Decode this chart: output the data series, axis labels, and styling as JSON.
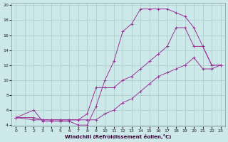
{
  "xlabel": "Windchill (Refroidissement éolien,°C)",
  "bg_color": "#cce8e8",
  "grid_color": "#aacccc",
  "line_color": "#993399",
  "xlim": [
    0,
    23
  ],
  "ylim": [
    4,
    20
  ],
  "xticks": [
    0,
    1,
    2,
    3,
    4,
    5,
    6,
    7,
    8,
    9,
    10,
    11,
    12,
    13,
    14,
    15,
    16,
    17,
    18,
    19,
    20,
    21,
    22,
    23
  ],
  "yticks": [
    4,
    6,
    8,
    10,
    12,
    14,
    16,
    18,
    20
  ],
  "series": [
    {
      "x": [
        0,
        2,
        3,
        4,
        5,
        6,
        7,
        8,
        9,
        10,
        11,
        12,
        13,
        14,
        15,
        16,
        17,
        18,
        19,
        20,
        21,
        22,
        23
      ],
      "y": [
        5,
        6,
        4.5,
        4.5,
        4.5,
        4.5,
        4.0,
        4.0,
        6.5,
        10.0,
        12.5,
        16.5,
        17.5,
        19.5,
        19.5,
        19.5,
        19.5,
        19.0,
        18.5,
        17.0,
        14.5,
        12.0,
        12.0
      ]
    },
    {
      "x": [
        0,
        2,
        3,
        4,
        5,
        6,
        7,
        8,
        9,
        10,
        11,
        12,
        13,
        14,
        15,
        16,
        17,
        18,
        19,
        20,
        21,
        22,
        23
      ],
      "y": [
        5,
        5,
        4.7,
        4.7,
        4.7,
        4.7,
        4.7,
        5.5,
        9.0,
        9.0,
        9.0,
        10.0,
        10.5,
        11.5,
        12.5,
        13.5,
        14.5,
        17.0,
        17.0,
        14.5,
        14.5,
        12.0,
        12.0
      ]
    },
    {
      "x": [
        0,
        2,
        3,
        4,
        5,
        6,
        7,
        8,
        9,
        10,
        11,
        12,
        13,
        14,
        15,
        16,
        17,
        18,
        19,
        20,
        21,
        22,
        23
      ],
      "y": [
        5,
        4.7,
        4.7,
        4.7,
        4.7,
        4.7,
        4.7,
        4.7,
        4.7,
        5.5,
        6.0,
        7.0,
        7.5,
        8.5,
        9.5,
        10.5,
        11.0,
        11.5,
        12.0,
        13.0,
        11.5,
        11.5,
        12.0
      ]
    }
  ]
}
